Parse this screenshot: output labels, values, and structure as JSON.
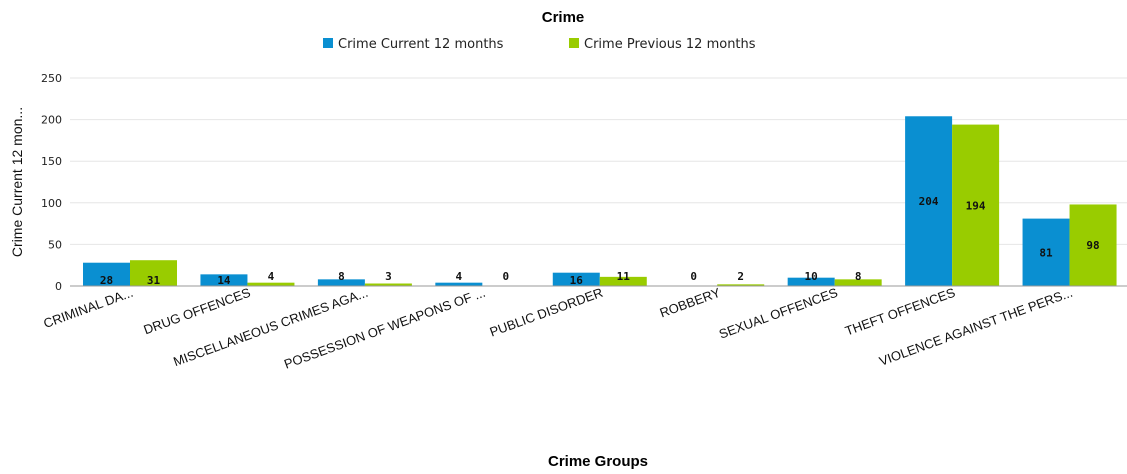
{
  "chart_data": {
    "type": "bar",
    "title": "Crime",
    "xlabel": "Crime Groups",
    "ylabel": "Crime Current 12 mon...",
    "ylim": [
      0,
      250
    ],
    "yticks": [
      0,
      50,
      100,
      150,
      200,
      250
    ],
    "grid": true,
    "legend_position": "top",
    "categories": [
      "CRIMINAL DA...",
      "DRUG OFFENCES",
      "MISCELLANEOUS CRIMES AGA...",
      "POSSESSION OF WEAPONS OF ...",
      "PUBLIC DISORDER",
      "ROBBERY",
      "SEXUAL OFFENCES",
      "THEFT OFFENCES",
      "VIOLENCE AGAINST THE PERS..."
    ],
    "series": [
      {
        "name": "Crime Current 12 months",
        "color": "#0a8fd1",
        "values": [
          28,
          14,
          8,
          4,
          16,
          0,
          10,
          204,
          81
        ]
      },
      {
        "name": "Crime Previous 12 months",
        "color": "#99cc00",
        "values": [
          31,
          4,
          3,
          0,
          11,
          2,
          8,
          194,
          98
        ]
      }
    ]
  }
}
